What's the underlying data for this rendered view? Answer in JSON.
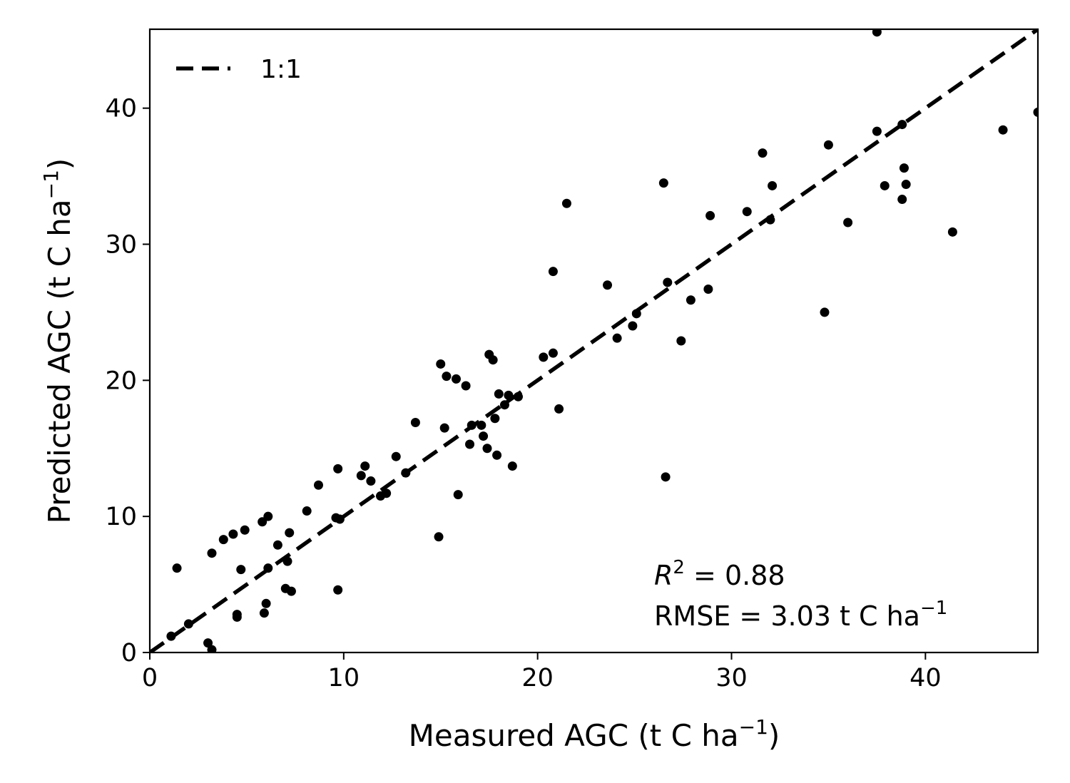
{
  "chart_data": {
    "type": "scatter",
    "xlabel": "Measured AGC (t C ha",
    "ylabel": "Predicted AGC (t C ha",
    "unit_exponent": "−1",
    "xlim": [
      0,
      45.8
    ],
    "ylim": [
      0,
      45.8
    ],
    "xticks": [
      0,
      10,
      20,
      30,
      40
    ],
    "yticks": [
      0,
      10,
      20,
      30,
      40
    ],
    "xtick_labels": [
      "0",
      "10",
      "20",
      "30",
      "40"
    ],
    "ytick_labels": [
      "0",
      "10",
      "20",
      "30",
      "40"
    ],
    "grid": false,
    "legend": {
      "position": "top-left",
      "entries": [
        {
          "label": "1:1",
          "style": "dashed",
          "color": "#000000"
        }
      ]
    },
    "reference_line": {
      "name": "1:1",
      "from": [
        0,
        0
      ],
      "to": [
        45.8,
        45.8
      ]
    },
    "annotations": {
      "r2_symbol": "R",
      "r2_exponent": "2",
      "r2_value": " = 0.88",
      "rmse_text": "RMSE = 3.03 t C ha",
      "rmse_exponent": "−1"
    },
    "marker_color": "#000000",
    "points": [
      [
        1.1,
        1.2
      ],
      [
        1.4,
        6.2
      ],
      [
        2.0,
        2.1
      ],
      [
        3.0,
        0.7
      ],
      [
        3.2,
        0.2
      ],
      [
        3.2,
        7.3
      ],
      [
        3.8,
        8.3
      ],
      [
        4.3,
        8.7
      ],
      [
        4.5,
        2.8
      ],
      [
        4.5,
        2.6
      ],
      [
        4.7,
        6.1
      ],
      [
        4.9,
        9.0
      ],
      [
        5.8,
        9.6
      ],
      [
        5.9,
        2.9
      ],
      [
        6.0,
        3.6
      ],
      [
        6.1,
        6.2
      ],
      [
        6.1,
        10.0
      ],
      [
        6.6,
        7.9
      ],
      [
        7.0,
        4.7
      ],
      [
        7.1,
        6.7
      ],
      [
        7.2,
        8.8
      ],
      [
        7.3,
        4.5
      ],
      [
        8.1,
        10.4
      ],
      [
        8.7,
        12.3
      ],
      [
        9.6,
        9.9
      ],
      [
        9.7,
        13.5
      ],
      [
        9.7,
        4.6
      ],
      [
        9.8,
        9.8
      ],
      [
        10.9,
        13.0
      ],
      [
        11.1,
        13.7
      ],
      [
        11.4,
        12.6
      ],
      [
        11.9,
        11.5
      ],
      [
        12.2,
        11.7
      ],
      [
        12.7,
        14.4
      ],
      [
        13.2,
        13.2
      ],
      [
        13.7,
        16.9
      ],
      [
        14.9,
        8.5
      ],
      [
        15.0,
        21.2
      ],
      [
        15.2,
        16.5
      ],
      [
        15.3,
        20.3
      ],
      [
        15.8,
        20.1
      ],
      [
        15.9,
        11.6
      ],
      [
        16.3,
        19.6
      ],
      [
        16.5,
        15.3
      ],
      [
        16.6,
        16.7
      ],
      [
        17.1,
        16.7
      ],
      [
        17.2,
        15.9
      ],
      [
        17.4,
        15.0
      ],
      [
        17.5,
        21.9
      ],
      [
        17.7,
        21.5
      ],
      [
        17.8,
        17.2
      ],
      [
        17.9,
        14.5
      ],
      [
        18.0,
        19.0
      ],
      [
        18.3,
        18.2
      ],
      [
        18.5,
        18.9
      ],
      [
        18.7,
        13.7
      ],
      [
        19.0,
        18.8
      ],
      [
        20.3,
        21.7
      ],
      [
        20.8,
        28.0
      ],
      [
        20.8,
        22.0
      ],
      [
        21.1,
        17.9
      ],
      [
        21.5,
        33.0
      ],
      [
        23.6,
        27.0
      ],
      [
        24.1,
        23.1
      ],
      [
        24.9,
        24.0
      ],
      [
        25.1,
        24.9
      ],
      [
        26.5,
        34.5
      ],
      [
        26.6,
        12.9
      ],
      [
        26.7,
        27.2
      ],
      [
        27.4,
        22.9
      ],
      [
        27.9,
        25.9
      ],
      [
        28.8,
        26.7
      ],
      [
        28.9,
        32.1
      ],
      [
        30.8,
        32.4
      ],
      [
        31.6,
        36.7
      ],
      [
        32.0,
        31.8
      ],
      [
        32.1,
        34.3
      ],
      [
        34.8,
        25.0
      ],
      [
        35.0,
        37.3
      ],
      [
        36.0,
        31.6
      ],
      [
        37.5,
        45.6
      ],
      [
        37.5,
        38.3
      ],
      [
        37.9,
        34.3
      ],
      [
        38.8,
        38.8
      ],
      [
        38.8,
        33.3
      ],
      [
        38.9,
        35.6
      ],
      [
        39.0,
        34.4
      ],
      [
        41.4,
        30.9
      ],
      [
        44.0,
        38.4
      ],
      [
        45.8,
        39.7
      ]
    ]
  }
}
